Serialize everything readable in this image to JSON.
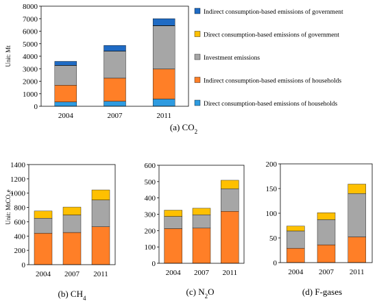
{
  "colors": {
    "direct_households": "#2E9BE0",
    "indirect_households": "#FF7F27",
    "investment": "#A6A6A6",
    "direct_government": "#FFC000",
    "indirect_government": "#1F6BC4"
  },
  "chart_data": [
    {
      "id": "co2",
      "type": "bar",
      "stacked": true,
      "caption_prefix": "(a) CO",
      "caption_sub": "2",
      "ylabel": "Unit: Mt",
      "categories": [
        "2004",
        "2007",
        "2011"
      ],
      "ylim": [
        0,
        8000
      ],
      "yticks": [
        0,
        1000,
        2000,
        3000,
        4000,
        5000,
        6000,
        7000,
        8000
      ],
      "series": [
        {
          "name": "Direct consumption-based emissions of households",
          "color_key": "direct_households",
          "values": [
            350,
            400,
            580
          ]
        },
        {
          "name": "Indirect consumption-based emissions of households",
          "color_key": "indirect_households",
          "values": [
            1330,
            1850,
            2400
          ]
        },
        {
          "name": "Investment emissions",
          "color_key": "investment",
          "values": [
            1580,
            2150,
            3450
          ]
        },
        {
          "name": "Direct consumption-based emissions of government",
          "color_key": "direct_government",
          "values": [
            10,
            10,
            20
          ]
        },
        {
          "name": "Indirect consumption-based emissions of government",
          "color_key": "indirect_government",
          "values": [
            320,
            450,
            550
          ]
        }
      ],
      "legend": {
        "position": "right",
        "entries": [
          {
            "label": "Indirect consumption-based emissions of government",
            "color_key": "indirect_government"
          },
          {
            "label": "Direct consumption-based emissions of government",
            "color_key": "direct_government"
          },
          {
            "label": "Investment emissions",
            "color_key": "investment"
          },
          {
            "label": "Indirect consumption-based emissions of households",
            "color_key": "indirect_households"
          },
          {
            "label": "Direct consumption-based emissions of households",
            "color_key": "direct_households"
          }
        ]
      }
    },
    {
      "id": "ch4",
      "type": "bar",
      "stacked": true,
      "caption_prefix": "(b) CH",
      "caption_sub": "4",
      "ylabel_prefix": "Unit: MtCO",
      "ylabel_sub": "2",
      "ylabel_suffix": "e",
      "categories": [
        "2004",
        "2007",
        "2011"
      ],
      "ylim": [
        0,
        1400
      ],
      "yticks": [
        0,
        200,
        400,
        600,
        800,
        1000,
        1200,
        1400
      ],
      "series": [
        {
          "name": "Indirect consumption-based emissions of households",
          "color_key": "indirect_households",
          "values": [
            440,
            450,
            530
          ]
        },
        {
          "name": "Investment emissions",
          "color_key": "investment",
          "values": [
            210,
            245,
            375
          ]
        },
        {
          "name": "Direct consumption-based emissions of government",
          "color_key": "direct_government",
          "values": [
            100,
            110,
            140
          ]
        }
      ]
    },
    {
      "id": "n2o",
      "type": "bar",
      "stacked": true,
      "caption_prefix": "(c) N",
      "caption_sub": "2",
      "caption_suffix": "O",
      "categories": [
        "2004",
        "2007",
        "2011"
      ],
      "ylim": [
        0,
        600
      ],
      "yticks": [
        0,
        100,
        200,
        300,
        400,
        500,
        600
      ],
      "series": [
        {
          "name": "Indirect consumption-based emissions of households",
          "color_key": "indirect_households",
          "values": [
            212,
            215,
            318
          ]
        },
        {
          "name": "Investment emissions",
          "color_key": "investment",
          "values": [
            75,
            82,
            138
          ]
        },
        {
          "name": "Direct consumption-based emissions of government",
          "color_key": "direct_government",
          "values": [
            38,
            40,
            52
          ]
        }
      ]
    },
    {
      "id": "fgases",
      "type": "bar",
      "stacked": true,
      "caption_prefix": "(d) F-gases",
      "categories": [
        "2004",
        "2007",
        "2011"
      ],
      "ylim": [
        0,
        200
      ],
      "yticks": [
        0,
        50,
        100,
        150,
        200
      ],
      "series": [
        {
          "name": "Indirect consumption-based emissions of households",
          "color_key": "indirect_households",
          "values": [
            29,
            36,
            52
          ]
        },
        {
          "name": "Investment emissions",
          "color_key": "investment",
          "values": [
            35,
            51,
            88
          ]
        },
        {
          "name": "Direct consumption-based emissions of government",
          "color_key": "direct_government",
          "values": [
            10,
            14,
            19
          ]
        }
      ]
    }
  ]
}
